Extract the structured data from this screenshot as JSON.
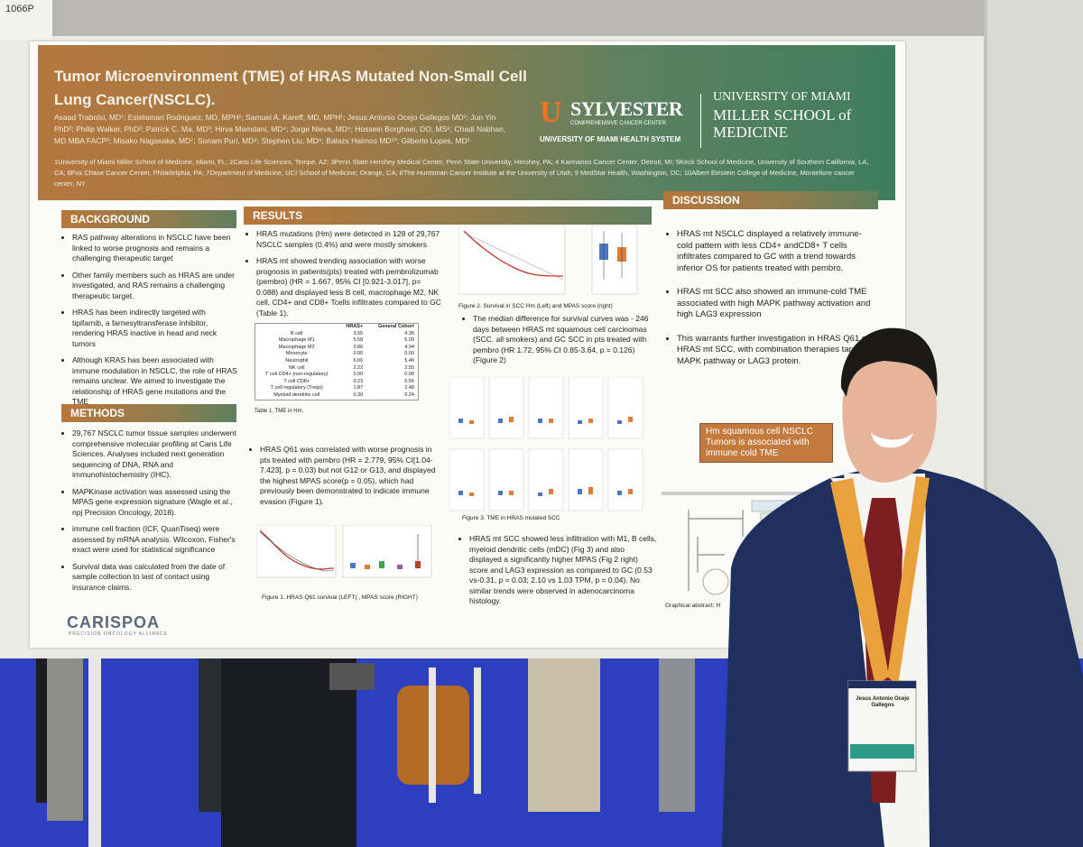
{
  "board_id": "1066P",
  "poster": {
    "title": "Tumor Microenvironment (TME) of HRAS Mutated Non-Small Cell Lung Cancer(NSCLC).",
    "authors": "Asaad Trabolsi, MD¹; Estelamari Rodriguez, MD, MPH¹; Samuel A. Kareff, MD, MPH¹; Jesus Antonio Ocejo Gallegos MD¹; Jun Yin PhD²; Philip Walker, PhD²; Patrick C. Ma, MD³; Hirva Mamdani, MD⁴; Jorge Nieva, MD⁵; Hossein Borghaei, DO, MS⁶; Chadi Nabhan, MD MBA FACP²; Misako Nagasaka, MD⁷; Sonam Puri, MD⁸; Stephen Liu, MD⁹; Balazs Halmos MD¹⁰; Gilberto Lopes, MD¹",
    "affiliations": "1University of Miami Miller School of Medicine, Miami, FL; 2Caris Life Sciences, Tempe, AZ; 3Penn State Hershey Medical Center, Penn State University, Hershey, PA; 4 Karmanos Cancer Center, Detroit, MI; 5Keck School of Medicine, University of Southern California, LA, CA; 6Fox Chase Cancer Center, Philadelphia, PA; 7Department of Medicine, UCI School of Medicine, Orange, CA; 8The Huntsman Cancer Institute at the University of Utah; 9 MedStar Health, Washington, DC; 10Albert Einstein College of Medicine, Montefiore cancer center, NY",
    "logos": {
      "sylvester_u": "U",
      "sylvester_name": "SYLVESTER",
      "sylvester_sub": "COMPREHENSIVE CANCER CENTER",
      "sylvester_health": "UNIVERSITY OF MIAMI HEALTH SYSTEM",
      "um_university": "UNIVERSITY OF MIAMI",
      "um_school": "MILLER SCHOOL of MEDICINE",
      "caris": "CARISPOA",
      "caris_sub": "PRECISION ONCOLOGY ALLIANCE"
    },
    "background": {
      "heading": "BACKGROUND",
      "items": [
        "RAS pathway alterations in NSCLC have been linked to worse prognosis and remains a challenging therapeutic target",
        "Other family members such as HRAS are under investigated, and RAS remains a challenging therapeutic target.",
        "HRAS has been indirectly targeted with tipifarnib, a farnesyltransferase inhibitor, rendering HRAS inactive in head and neck tumors",
        "Although KRAS has been associated with immune modulation in NSCLC, the role of HRAS remains unclear. We aimed to investigate the relationship of HRAS gene mutations and the TME"
      ]
    },
    "methods": {
      "heading": "METHODS",
      "items": [
        "29,767 NSCLC tumor tissue samples underwent comprehensive molecular profiling at Caris Life Sciences. Analyses included next generation sequencing of DNA, RNA and immunohistochemistry (IHC).",
        "MAPKinase activation was assessed using the MPAS gene expression signature (Wagle et al., npj Precision Oncology, 2018).",
        "immune cell fraction (ICF, QuanTiseq) were assessed by mRNA analysis. Wilcoxon, Fisher's exact were used for statistical significance",
        "Survival data was calculated from the date of sample collection to last of contact using insurance claims."
      ]
    },
    "results": {
      "heading": "RESULTS",
      "items1": [
        "HRAS  mutations (Hm) were detected in 128 of 29,767 NSCLC samples (0.4%) and were mostly smokers",
        "HRAS mt showed trending association with worse prognosis in patients(pts) treated with pembrolizumab (pembro) (HR = 1.667, 95% CI [0.921-3.017], p= 0.088) and displayed less B cell, macrophage M2, NK cell, CD4+ and CD8+ Tcells infiltrates compared to GC (Table 1)."
      ],
      "table_headers": [
        "",
        "HRAS+",
        "General Cohort"
      ],
      "table_rows": [
        [
          "B cell",
          "3.55",
          "4.35"
        ],
        [
          "Macrophage M1",
          "5.58",
          "5.09"
        ],
        [
          "Macrophage M2",
          "3.86",
          "4.94"
        ],
        [
          "Monocyte",
          "0.00",
          "0.00"
        ],
        [
          "Neutrophil",
          "6.66",
          "5.46"
        ],
        [
          "NK cell",
          "2.22",
          "2.55"
        ],
        [
          "T cell CD4+ (non-regulatory)",
          "0.00",
          "0.00"
        ],
        [
          "T cell CD8+",
          "0.23",
          "0.55"
        ],
        [
          "T cell regulatory (Tregs)",
          "1.87",
          "2.48"
        ],
        [
          "Myeloid dendritic cell",
          "0.30",
          "0.24"
        ]
      ],
      "table_caption": "Table 1. TME in Hm.",
      "items2": [
        "HRAS Q61 was correlated with worse prognosis in pts treated with pembro (HR = 2.779, 95% CI[1.04-7.423], p = 0.03) but not G12 or G13, and displayed the highest MPAS score(p = 0.05), which had previously been demonstrated to indicate immune evasion (Figure 1)."
      ],
      "fig1_caption": "Figure 1. HRAS Q61 survival (LEFT) , MPAS score (RIGHT)",
      "fig2_caption": "Figure 2. Survival in SCC Hm (Left)  and MPAS score (right)",
      "items3": [
        "The median difference for survival curves was - 246 days between HRAS mt squamous cell carcinomas (SCC, all smokers) and GC SCC in pts treated with pembro (HR 1.72, 95% CI 0.85-3.64, p = 0.126) (Figure 2)"
      ],
      "fig3_caption": "Figure 3. TME in HRAS mutated SCC",
      "items4": [
        "HRAS mt SCC showed less infiltration with M1, B cells, myeloid dendritic cells (mDC) (Fig 3) and also displayed a significantly higher MPAS (Fig 2 right) score and LAG3 expression as compared to GC (0.53 vs-0.31, p = 0.03; 2.10 vs 1.03 TPM, p = 0.04). No similar trends were observed in adenocarcinoma histology."
      ]
    },
    "discussion": {
      "heading": "DISCUSSION",
      "items": [
        "HRAS mt NSCLC displayed a relatively immune-cold pattern with less CD4+ andCD8+ T cells infiltrates compared to GC with a trend towards inferior OS for patients treated with pembro.",
        "HRAS mt SCC also showed an immune-cold TME associated with high MAPK pathway activation and high LAG3 expression",
        "This warrants further investigation in HRAS Q61 or HRAS mt SCC, with combination therapies targeting MAPK pathway or LAG3 protein."
      ],
      "callout": "Hm squamous cell NSCLC Tumors  is associated with immune cold TME",
      "graph_caption": "Graphical abstract: H"
    }
  },
  "badge": {
    "name": "Jesus Antonio Ocejo Gallegos"
  },
  "colors": {
    "header_orange": "#b4783e",
    "header_green": "#3f7d5c",
    "floor_blue": "#2b3fbf",
    "suit_navy": "#1f2f5e",
    "tie_red": "#7d1e22"
  }
}
